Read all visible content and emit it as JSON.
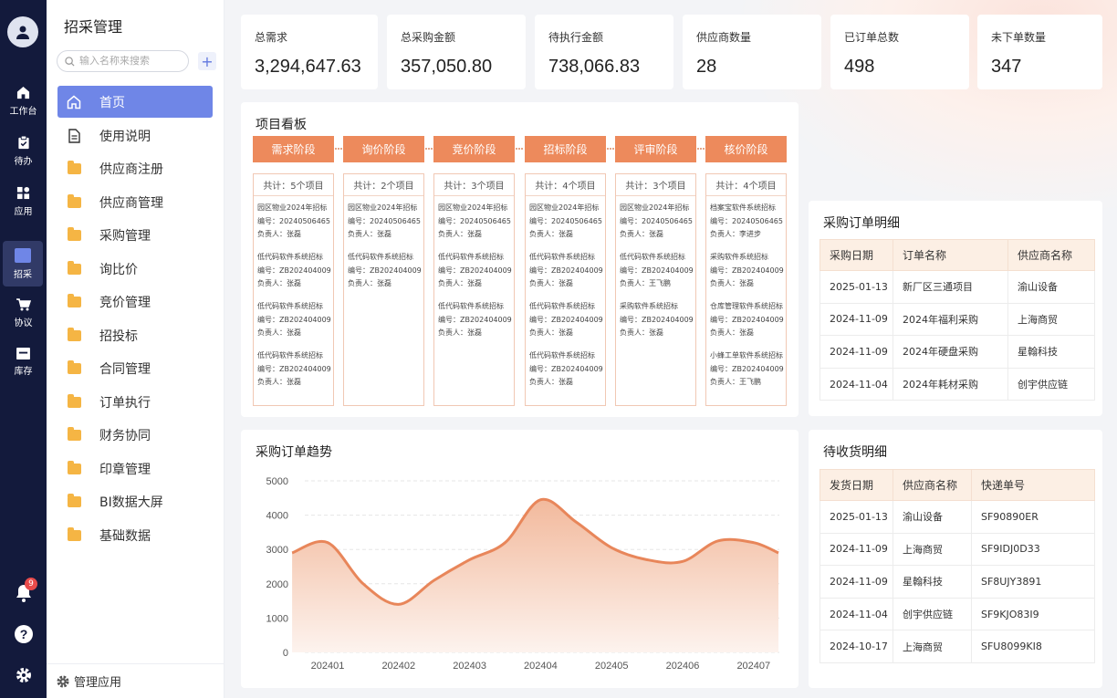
{
  "rail": {
    "items": [
      {
        "label": "工作台",
        "icon": "home-icon"
      },
      {
        "label": "待办",
        "icon": "clipboard-check-icon"
      },
      {
        "label": "应用",
        "icon": "apps-grid-icon"
      },
      {
        "label": "招采",
        "icon": "procurement-icon"
      },
      {
        "label": "协议",
        "icon": "cart-icon"
      },
      {
        "label": "库存",
        "icon": "warehouse-icon"
      }
    ],
    "notification_count": "9"
  },
  "sidebar": {
    "title": "招采管理",
    "search_placeholder": "输入名称来搜索",
    "add_label": "+",
    "items": [
      {
        "label": "首页",
        "icon": "home-icon"
      },
      {
        "label": "使用说明",
        "icon": "document-icon"
      },
      {
        "label": "供应商注册",
        "icon": "folder-icon"
      },
      {
        "label": "供应商管理",
        "icon": "folder-icon"
      },
      {
        "label": "采购管理",
        "icon": "folder-icon"
      },
      {
        "label": "询比价",
        "icon": "folder-icon"
      },
      {
        "label": "竞价管理",
        "icon": "folder-icon"
      },
      {
        "label": "招投标",
        "icon": "folder-icon"
      },
      {
        "label": "合同管理",
        "icon": "folder-icon"
      },
      {
        "label": "订单执行",
        "icon": "folder-icon"
      },
      {
        "label": "财务协同",
        "icon": "folder-icon"
      },
      {
        "label": "印章管理",
        "icon": "folder-icon"
      },
      {
        "label": "BI数据大屏",
        "icon": "folder-icon"
      },
      {
        "label": "基础数据",
        "icon": "folder-icon"
      }
    ],
    "footer_label": "管理应用"
  },
  "stats": [
    {
      "label": "总需求",
      "value": "3,294,647.63"
    },
    {
      "label": "总采购金额",
      "value": "357,050.80"
    },
    {
      "label": "待执行金额",
      "value": "738,066.83"
    },
    {
      "label": "供应商数量",
      "value": "28"
    },
    {
      "label": "已订单总数",
      "value": "498"
    },
    {
      "label": "未下单数量",
      "value": "347"
    }
  ],
  "kanban": {
    "title": "项目看板",
    "columns": [
      {
        "stage": "需求阶段",
        "count": "共计：5个项目",
        "items": [
          {
            "name": "园区物业2024年招标",
            "code": "编号：20240506465",
            "owner": "负责人：张磊"
          },
          {
            "name": "低代码软件系统招标",
            "code": "编号：ZB202404009",
            "owner": "负责人：张磊"
          },
          {
            "name": "低代码软件系统招标",
            "code": "编号：ZB202404009",
            "owner": "负责人：张磊"
          },
          {
            "name": "低代码软件系统招标",
            "code": "编号：ZB202404009",
            "owner": "负责人：张磊"
          }
        ]
      },
      {
        "stage": "询价阶段",
        "count": "共计：2个项目",
        "items": [
          {
            "name": "园区物业2024年招标",
            "code": "编号：20240506465",
            "owner": "负责人：张磊"
          },
          {
            "name": "低代码软件系统招标",
            "code": "编号：ZB202404009",
            "owner": "负责人：张磊"
          }
        ]
      },
      {
        "stage": "竞价阶段",
        "count": "共计：3个项目",
        "items": [
          {
            "name": "园区物业2024年招标",
            "code": "编号：20240506465",
            "owner": "负责人：张磊"
          },
          {
            "name": "低代码软件系统招标",
            "code": "编号：ZB202404009",
            "owner": "负责人：张磊"
          },
          {
            "name": "低代码软件系统招标",
            "code": "编号：ZB202404009",
            "owner": "负责人：张磊"
          }
        ]
      },
      {
        "stage": "招标阶段",
        "count": "共计：4个项目",
        "items": [
          {
            "name": "园区物业2024年招标",
            "code": "编号：20240506465",
            "owner": "负责人：张磊"
          },
          {
            "name": "低代码软件系统招标",
            "code": "编号：ZB202404009",
            "owner": "负责人：张磊"
          },
          {
            "name": "低代码软件系统招标",
            "code": "编号：ZB202404009",
            "owner": "负责人：张磊"
          },
          {
            "name": "低代码软件系统招标",
            "code": "编号：ZB202404009",
            "owner": "负责人：张磊"
          }
        ]
      },
      {
        "stage": "评审阶段",
        "count": "共计：3个项目",
        "items": [
          {
            "name": "园区物业2024年招标",
            "code": "编号：20240506465",
            "owner": "负责人：张磊"
          },
          {
            "name": "低代码软件系统招标",
            "code": "编号：ZB202404009",
            "owner": "负责人：王飞鹏"
          },
          {
            "name": "采购软件系统招标",
            "code": "编号：ZB202404009",
            "owner": "负责人：张磊"
          }
        ]
      },
      {
        "stage": "核价阶段",
        "count": "共计：4个项目",
        "items": [
          {
            "name": "档案宝软件系统招标",
            "code": "编号：20240506465",
            "owner": "负责人：李进步"
          },
          {
            "name": "采购软件系统招标",
            "code": "编号：ZB202404009",
            "owner": "负责人：张磊"
          },
          {
            "name": "仓库管理软件系统招标",
            "code": "编号：ZB202404009",
            "owner": "负责人：张磊"
          },
          {
            "name": "小蜂工单软件系统招标",
            "code": "编号：ZB202404009",
            "owner": "负责人：王飞鹏"
          }
        ]
      }
    ]
  },
  "orders": {
    "title": "采购订单明细",
    "headers": [
      "采购日期",
      "订单名称",
      "供应商名称"
    ],
    "rows": [
      [
        "2025-01-13",
        "新厂区三通项目",
        "渝山设备"
      ],
      [
        "2024-11-09",
        "2024年福利采购",
        "上海商贸"
      ],
      [
        "2024-11-09",
        "2024年硬盘采购",
        "星翰科技"
      ],
      [
        "2024-11-04",
        "2024年耗材采购",
        "创宇供应链"
      ]
    ]
  },
  "receipts": {
    "title": "待收货明细",
    "headers": [
      "发货日期",
      "供应商名称",
      "快递单号"
    ],
    "rows": [
      [
        "2025-01-13",
        "渝山设备",
        "SF90890ER"
      ],
      [
        "2024-11-09",
        "上海商贸",
        "SF9IDJ0D33"
      ],
      [
        "2024-11-09",
        "星翰科技",
        "SF8UJY3891"
      ],
      [
        "2024-11-04",
        "创宇供应链",
        "SF9KJO83I9"
      ],
      [
        "2024-10-17",
        "上海商贸",
        "SFU8099KI8"
      ]
    ]
  },
  "chart_data": {
    "type": "area",
    "title": "采购订单趋势",
    "xlabel": "",
    "ylabel": "",
    "categories": [
      "202401",
      "202402",
      "202403",
      "202404",
      "202405",
      "202406",
      "202407"
    ],
    "ylim": [
      0,
      5000
    ],
    "yticks": [
      0,
      1000,
      2000,
      3000,
      4000,
      5000
    ],
    "points": [
      {
        "x": 202400.5,
        "y": 2900
      },
      {
        "x": 202401,
        "y": 3200
      },
      {
        "x": 202401.5,
        "y": 2000
      },
      {
        "x": 202402,
        "y": 1400
      },
      {
        "x": 202402.5,
        "y": 2100
      },
      {
        "x": 202403,
        "y": 2700
      },
      {
        "x": 202403.5,
        "y": 3200
      },
      {
        "x": 202404,
        "y": 4450
      },
      {
        "x": 202404.5,
        "y": 3800
      },
      {
        "x": 202405,
        "y": 3050
      },
      {
        "x": 202405.5,
        "y": 2700
      },
      {
        "x": 202406,
        "y": 2650
      },
      {
        "x": 202406.5,
        "y": 3250
      },
      {
        "x": 202407,
        "y": 3200
      },
      {
        "x": 202407.35,
        "y": 2900
      }
    ],
    "grid": true,
    "colors": {
      "line": "#e8865a",
      "fill_top": "#f2b99c",
      "fill_bottom": "#fdf3ee"
    }
  }
}
